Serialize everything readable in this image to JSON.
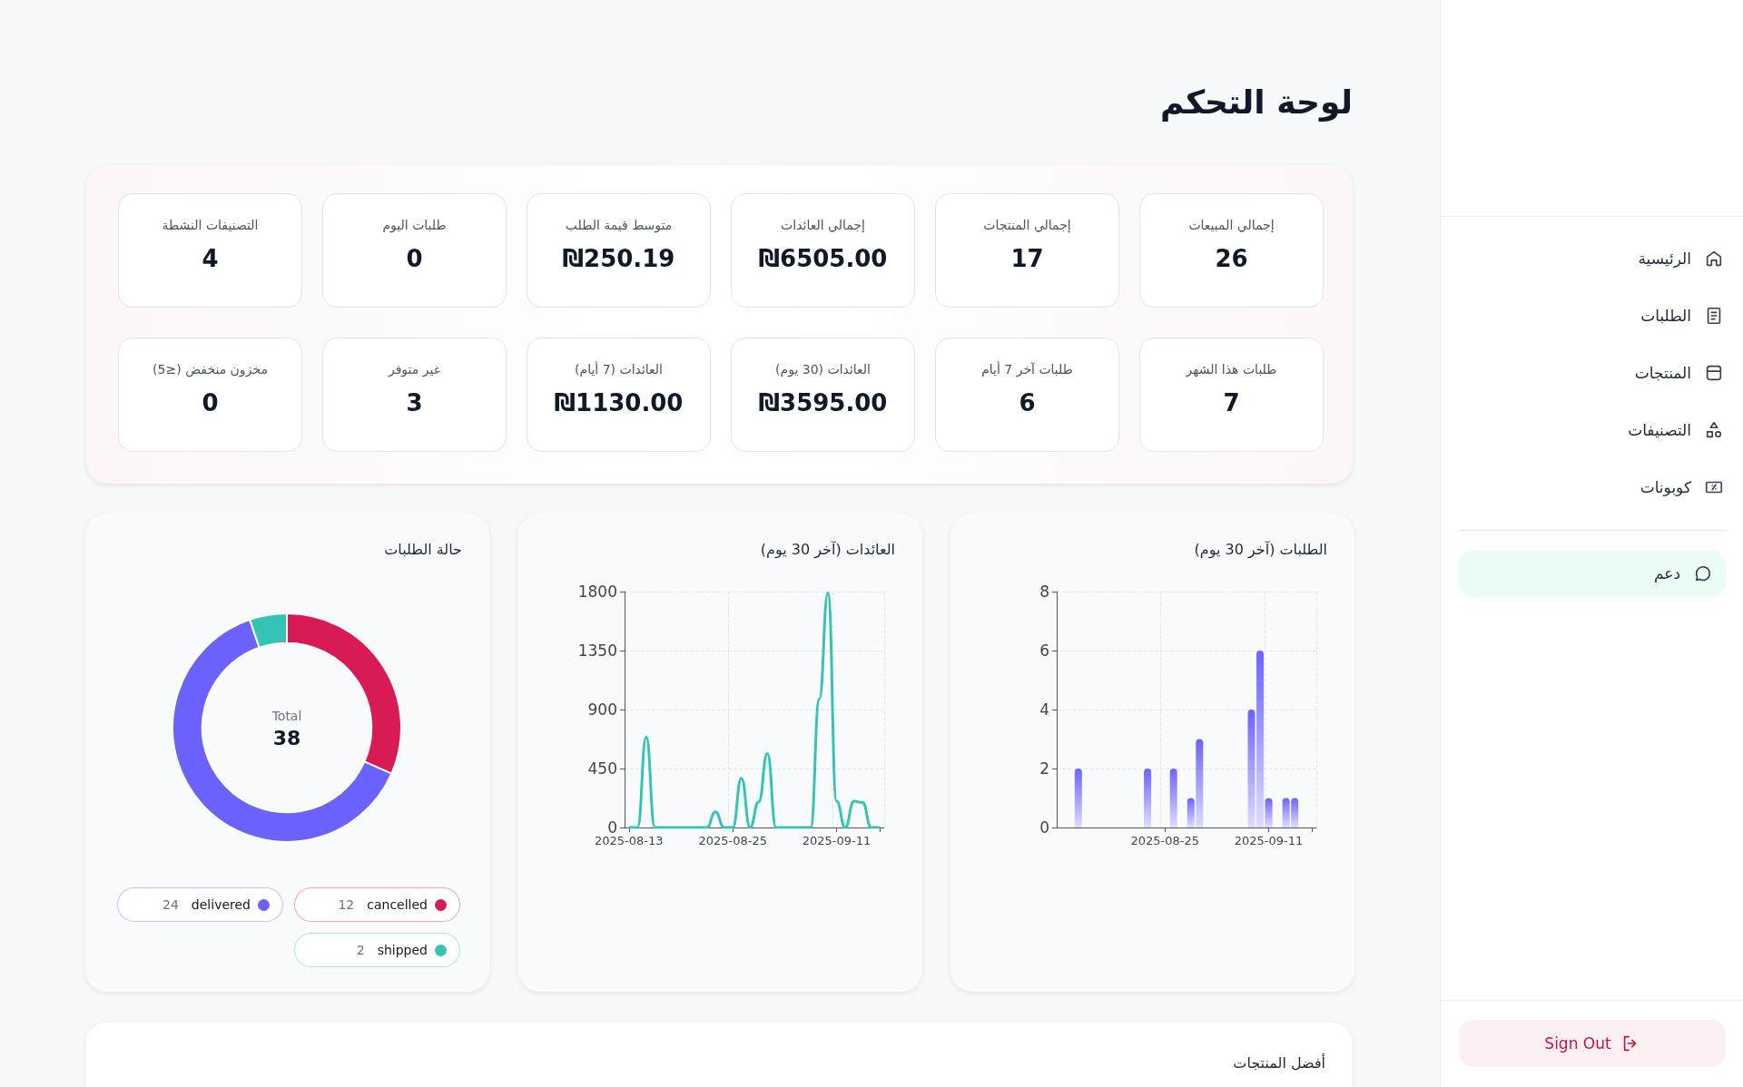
{
  "chart_data": [
    {
      "type": "other",
      "title": "لوحة التحكم",
      "annotations": [
        "إجمالي المبيعات",
        "26",
        "إجمالي المنتجات",
        "17",
        "إجمالي العائدات",
        "₪6505.00",
        "متوسط قيمة الطلب",
        "₪250.19",
        "طلبات اليوم",
        "0",
        "التصنيفات النشطة",
        "4",
        "طلبات هذا الشهر",
        "7",
        "طلبات آخر 7 أيام",
        "6",
        "العائدات (30 يوم)",
        "₪3595.00",
        "العائدات (7 أيام)",
        "₪1130.00",
        "غير متوفر",
        "3",
        "مخزون منخفض (≤5)",
        "0"
      ]
    },
    {
      "type": "bar",
      "title": "الطلبات (آخر 30 يوم)",
      "categories": [
        null,
        null,
        null,
        null,
        null,
        null,
        null,
        null,
        null,
        null,
        null,
        null,
        "2025-08-25",
        null,
        null,
        null,
        null,
        null,
        null,
        null,
        null,
        null,
        null,
        null,
        "2025-09-11",
        null,
        null,
        null,
        null,
        null
      ],
      "values": [
        null,
        null,
        2,
        null,
        null,
        null,
        null,
        null,
        null,
        null,
        2,
        null,
        null,
        2,
        null,
        1,
        3,
        null,
        null,
        null,
        null,
        null,
        4,
        6,
        1,
        null,
        1,
        1,
        null,
        null
      ],
      "color": "#6c63ff",
      "ylim": [
        0,
        8
      ],
      "yticks": [
        0,
        2,
        4,
        6,
        8
      ],
      "grid": true
    },
    {
      "type": "line",
      "title": "العائدات (آخر 30 يوم)",
      "categories": [
        "2025-08-13",
        null,
        null,
        null,
        null,
        null,
        null,
        null,
        null,
        null,
        null,
        null,
        "2025-08-25",
        null,
        null,
        null,
        null,
        null,
        null,
        null,
        null,
        null,
        null,
        null,
        "2025-09-11",
        null,
        null,
        null,
        null,
        null
      ],
      "values": [
        0,
        0,
        690,
        0,
        0,
        0,
        0,
        0,
        0,
        0,
        120,
        0,
        0,
        375,
        0,
        195,
        565,
        0,
        0,
        0,
        0,
        0,
        980,
        1790,
        200,
        0,
        200,
        190,
        0,
        0
      ],
      "color": "#34c3b5",
      "ylim": [
        0,
        1800
      ],
      "yticks": [
        0,
        450,
        900,
        1350,
        1800
      ],
      "grid": true
    },
    {
      "type": "donut",
      "title": "حالة الطلبات",
      "categories": [
        "cancelled",
        "delivered",
        "shipped"
      ],
      "values": [
        12,
        24,
        2
      ],
      "colors": [
        "#d81b55",
        "#6c63ff",
        "#34c3b5"
      ],
      "legend": "bottom",
      "data_labels": true,
      "annotations": [
        "Total",
        "38"
      ]
    },
    {
      "type": "other",
      "title": "أفضل المنتجات"
    },
    {
      "type": "other",
      "annotations": [
        "الرئيسية",
        "الطلبات",
        "المنتجات",
        "التصنيفات",
        "كوبونات",
        "دعم",
        "Sign Out"
      ]
    }
  ]
}
